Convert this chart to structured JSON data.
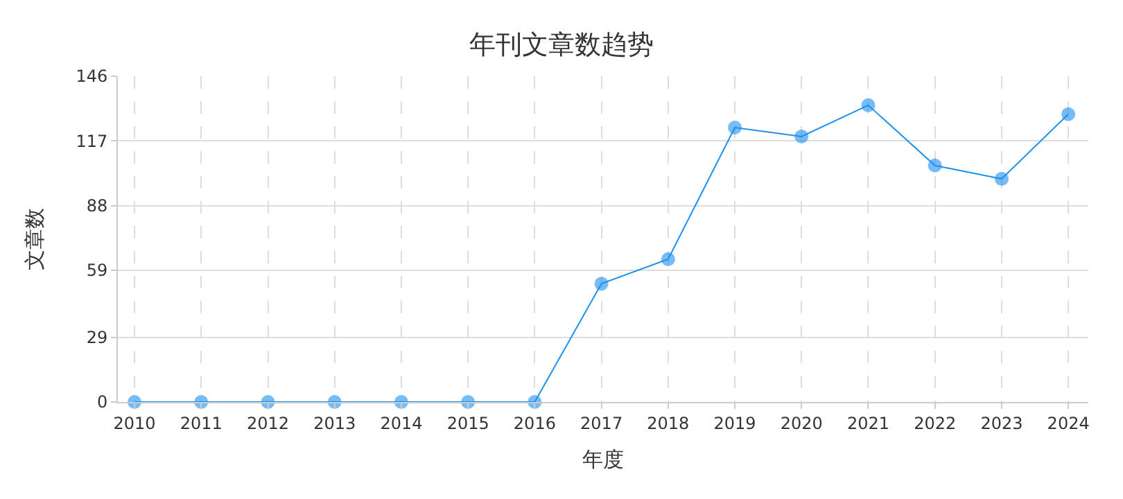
{
  "chart_data": {
    "type": "line",
    "title": "年刊文章数趋势",
    "xlabel": "年度",
    "ylabel": "文章数",
    "x": [
      2010,
      2011,
      2012,
      2013,
      2014,
      2015,
      2016,
      2017,
      2018,
      2019,
      2020,
      2021,
      2022,
      2023,
      2024
    ],
    "series": [
      {
        "color": "#1a90f0",
        "values": [
          0,
          0,
          0,
          0,
          0,
          0,
          0,
          53,
          64,
          123,
          119,
          133,
          106,
          100,
          129
        ]
      }
    ],
    "xlim": [
      2009.75,
      2024.3
    ],
    "xticks": [
      2010,
      2011,
      2012,
      2013,
      2014,
      2015,
      2016,
      2017,
      2018,
      2019,
      2020,
      2021,
      2022,
      2023,
      2024
    ],
    "ylim": [
      0,
      146
    ],
    "yticks": [
      0,
      29,
      59,
      88,
      117,
      146
    ],
    "grid": true,
    "marker": "circle",
    "line_style": "solid"
  }
}
